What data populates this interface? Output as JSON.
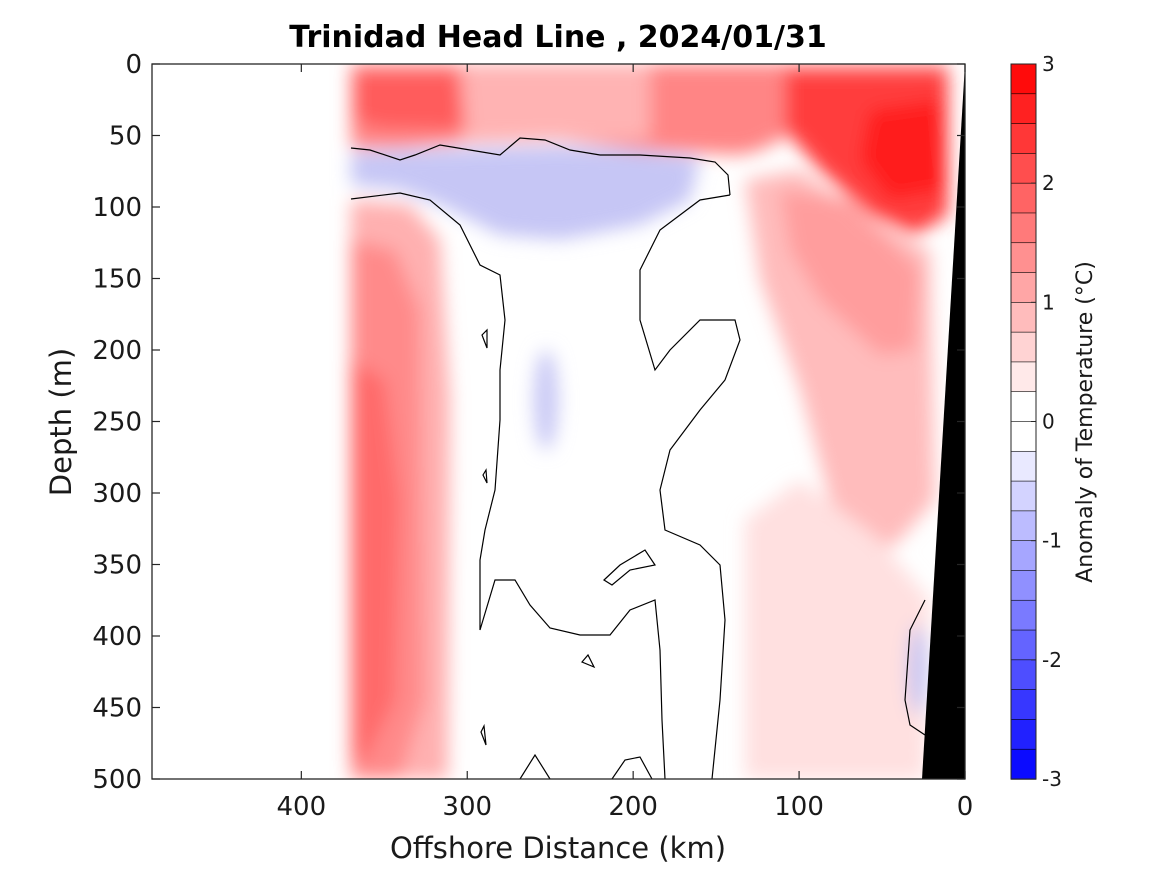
{
  "chart_data": {
    "type": "heatmap",
    "title": "Trinidad Head Line , 2024/01/31",
    "xlabel": "Offshore Distance (km)",
    "ylabel": "Depth (m)",
    "colorbar_label": "Anomaly of Temperature (°C)",
    "xlim": [
      490,
      0
    ],
    "ylim": [
      0,
      500
    ],
    "x_reversed": true,
    "y_reversed": true,
    "x_ticks": [
      400,
      300,
      200,
      100,
      0
    ],
    "y_ticks": [
      0,
      50,
      100,
      150,
      200,
      250,
      300,
      350,
      400,
      450,
      500
    ],
    "colorbar": {
      "range": [
        -3,
        3
      ],
      "step": 0.25,
      "ticks": [
        3,
        2,
        1,
        0,
        -1,
        -2,
        -3
      ]
    },
    "data_extent_km": [
      370,
      0
    ],
    "colors": {
      "warm": "#ff0000",
      "cold": "#0000ff",
      "zero": "#ffffff",
      "land": "#000000"
    },
    "sections": [
      {
        "x": [
          370,
          320
        ],
        "depth": [
          0,
          45
        ],
        "anomaly": 1.5
      },
      {
        "x": [
          320,
          250
        ],
        "depth": [
          0,
          45
        ],
        "anomaly": 0.9
      },
      {
        "x": [
          250,
          150
        ],
        "depth": [
          0,
          45
        ],
        "anomaly": 0.9
      },
      {
        "x": [
          150,
          110
        ],
        "depth": [
          0,
          45
        ],
        "anomaly": 1.5
      },
      {
        "x": [
          110,
          15
        ],
        "depth": [
          10,
          90
        ],
        "anomaly": 2.5
      },
      {
        "x": [
          370,
          200
        ],
        "depth": [
          60,
          110
        ],
        "anomaly": -0.5
      },
      {
        "x": [
          370,
          310
        ],
        "depth": [
          100,
          500
        ],
        "anomaly": 1.2
      },
      {
        "x": [
          370,
          330
        ],
        "depth": [
          250,
          450
        ],
        "anomaly": 1.9
      },
      {
        "x": [
          135,
          20
        ],
        "depth": [
          100,
          500
        ],
        "anomaly": 0.4
      },
      {
        "x": [
          110,
          40
        ],
        "depth": [
          100,
          250
        ],
        "anomaly": 0.9
      },
      {
        "x": [
          310,
          140
        ],
        "depth": [
          110,
          500
        ],
        "anomaly": 0.0
      },
      {
        "x": [
          260,
          240
        ],
        "depth": [
          200,
          280
        ],
        "anomaly": -0.3
      },
      {
        "x": [
          40,
          25
        ],
        "depth": [
          390,
          470
        ],
        "anomaly": -0.4
      }
    ]
  }
}
